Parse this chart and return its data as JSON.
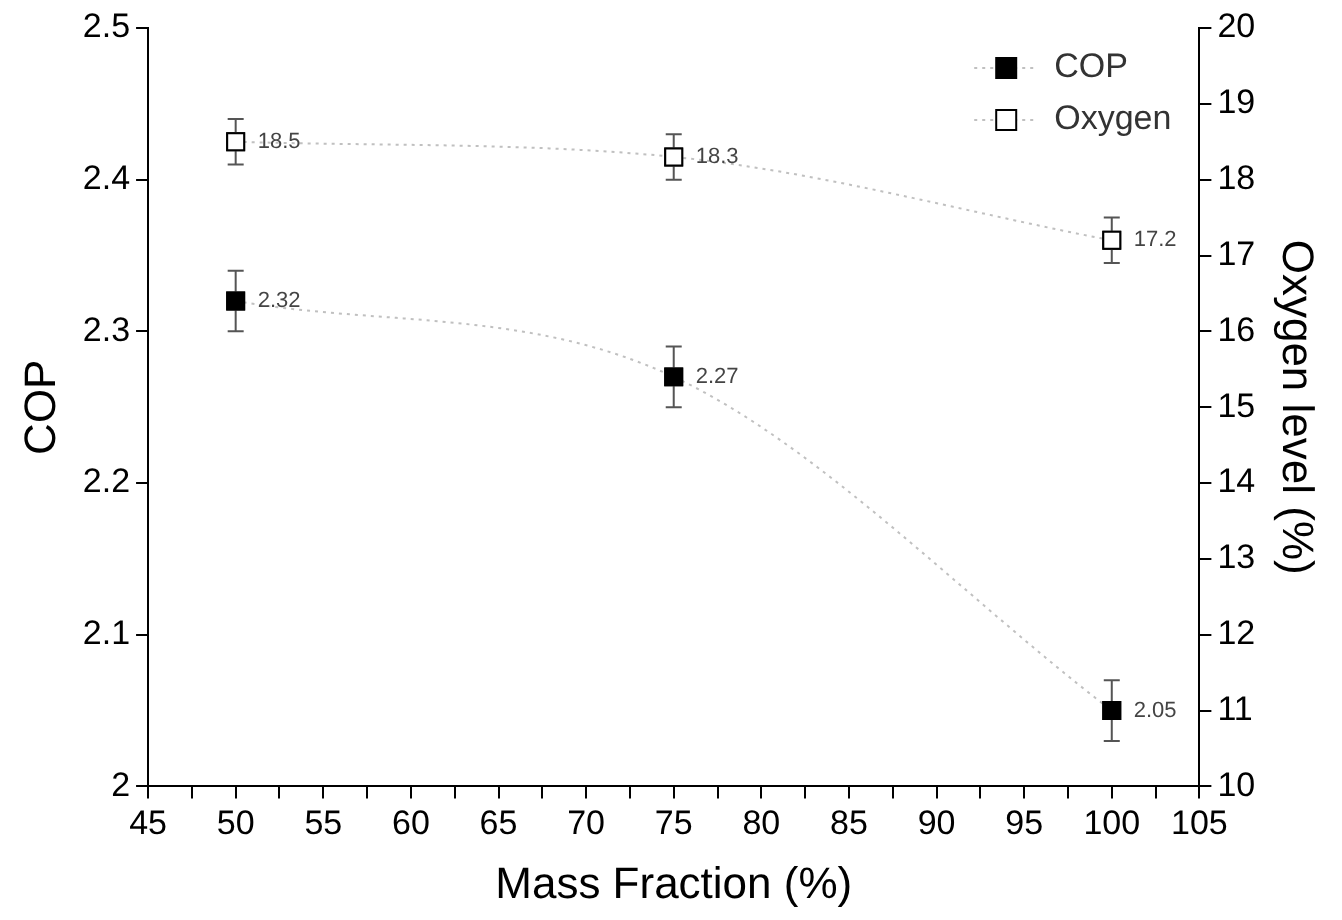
{
  "chart_data": {
    "type": "line",
    "xlabel": "Mass Fraction (%)",
    "ylabel": "COP",
    "y2label": "Oxygen level (%)",
    "x": [
      50,
      75,
      100
    ],
    "series": [
      {
        "name": "COP",
        "color": "#000000",
        "values": [
          2.32,
          2.27,
          2.05
        ],
        "errors": [
          0.02,
          0.02,
          0.02
        ]
      },
      {
        "name": "Oxygen",
        "color": "#ffffff",
        "axis": "y2",
        "values": [
          18.5,
          18.3,
          17.2
        ],
        "errors": [
          0.3,
          0.3,
          0.3
        ]
      }
    ],
    "xlim": [
      45,
      105
    ],
    "xticks": [
      45,
      {
        "value": 47.5,
        "label": null
      },
      50,
      {
        "value": 52.5,
        "label": null
      },
      55,
      {
        "value": 57.5,
        "label": null
      },
      60,
      {
        "value": 62.5,
        "label": null
      },
      65,
      {
        "value": 67.5,
        "label": null
      },
      70,
      {
        "value": 72.5,
        "label": null
      },
      75,
      {
        "value": 77.5,
        "label": null
      },
      80,
      {
        "value": 82.5,
        "label": null
      },
      85,
      {
        "value": 87.5,
        "label": null
      },
      90,
      {
        "value": 92.5,
        "label": null
      },
      95,
      {
        "value": 97.5,
        "label": null
      },
      100,
      {
        "value": 102.5,
        "label": null
      },
      105
    ],
    "ylim": [
      2,
      2.5
    ],
    "yticks": [
      2,
      2.1,
      2.2,
      2.3,
      2.4,
      2.5
    ],
    "y2lim": [
      10,
      20
    ],
    "y2ticks": [
      10,
      11,
      12,
      13,
      14,
      15,
      16,
      17,
      18,
      19,
      20
    ],
    "grid": false,
    "legend": "top right",
    "marker": "square",
    "line_style": "dotted",
    "data_labels": true
  }
}
